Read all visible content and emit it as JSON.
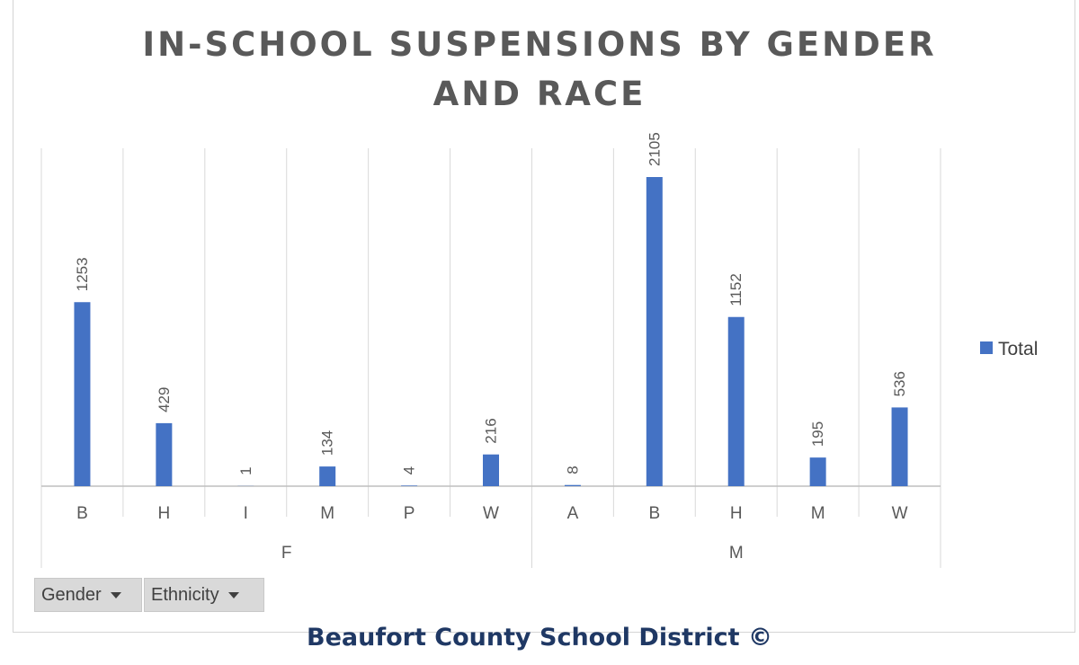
{
  "chart_data": {
    "type": "bar",
    "title": "IN-SCHOOL SUSPENSIONS BY GENDER AND RACE",
    "title_lines": [
      "IN-SCHOOL SUSPENSIONS BY GENDER",
      "AND RACE"
    ],
    "groups": [
      {
        "label": "F",
        "categories": [
          "B",
          "H",
          "I",
          "M",
          "P",
          "W"
        ]
      },
      {
        "label": "M",
        "categories": [
          "A",
          "B",
          "H",
          "M",
          "W"
        ]
      }
    ],
    "categories": [
      "B",
      "H",
      "I",
      "M",
      "P",
      "W",
      "A",
      "B",
      "H",
      "M",
      "W"
    ],
    "series": [
      {
        "name": "Total",
        "values": [
          1253,
          429,
          1,
          134,
          4,
          216,
          8,
          2105,
          1152,
          195,
          536
        ],
        "color": "#4472c4"
      }
    ],
    "data_labels": true,
    "ylim": [
      0,
      2300
    ],
    "grid": "vertical category separators",
    "legend_position": "right",
    "xlabel": "",
    "ylabel": ""
  },
  "legend": {
    "label": "Total",
    "color": "#4472c4"
  },
  "field_buttons": {
    "gender": "Gender",
    "ethnicity": "Ethnicity"
  },
  "footer": {
    "text": "Beaufort County School District ©"
  }
}
